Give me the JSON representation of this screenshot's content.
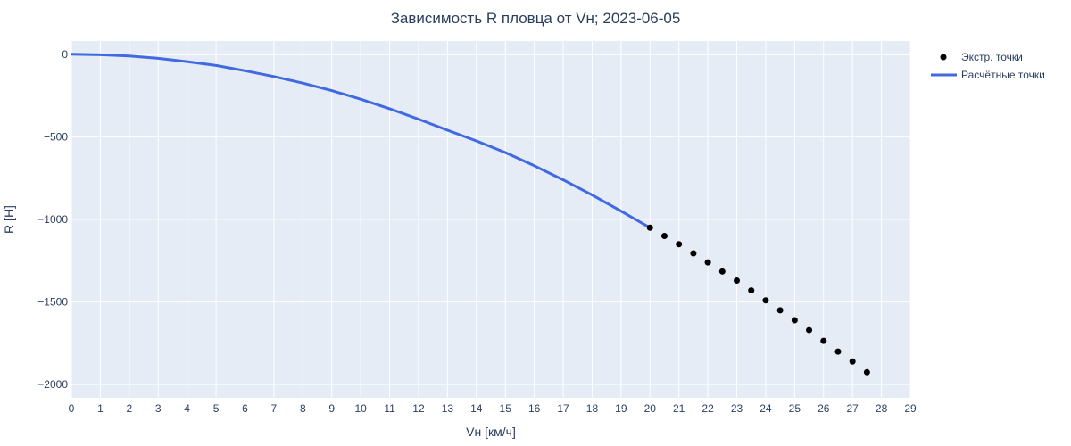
{
  "chart_data": {
    "type": "line+scatter",
    "title": "Зависимость R пловца от Vн; 2023-06-05",
    "xlabel": "Vн [км/ч]",
    "ylabel": "R [Н]",
    "xlim": [
      0,
      29
    ],
    "ylim": [
      -2080,
      80
    ],
    "x_ticks": [
      0,
      1,
      2,
      3,
      4,
      5,
      6,
      7,
      8,
      9,
      10,
      11,
      12,
      13,
      14,
      15,
      16,
      17,
      18,
      19,
      20,
      21,
      22,
      23,
      24,
      25,
      26,
      27,
      28,
      29
    ],
    "y_ticks": [
      0,
      -500,
      -1000,
      -1500,
      -2000
    ],
    "y_tick_labels": [
      "0",
      "−500",
      "−1000",
      "−1500",
      "−2000"
    ],
    "grid": true,
    "legend_position": "top-right",
    "colors": {
      "plot_bg": "#e5ecf6",
      "grid": "#ffffff",
      "line": "#4169e1",
      "marker": "#000000"
    },
    "series": [
      {
        "name": "Экстр. точки",
        "mode": "markers",
        "x": [
          20,
          20.5,
          21,
          21.5,
          22,
          22.5,
          23,
          23.5,
          24,
          24.5,
          25,
          25.5,
          26,
          26.5,
          27,
          27.5
        ],
        "y": [
          -1050,
          -1100,
          -1150,
          -1205,
          -1260,
          -1315,
          -1370,
          -1430,
          -1490,
          -1550,
          -1610,
          -1670,
          -1735,
          -1800,
          -1860,
          -1925
        ]
      },
      {
        "name": "Расчётные точки",
        "mode": "lines",
        "x": [
          0,
          1,
          2,
          3,
          4,
          5,
          6,
          7,
          8,
          9,
          10,
          11,
          12,
          13,
          14,
          15,
          16,
          17,
          18,
          19,
          20
        ],
        "y": [
          0,
          -3,
          -10,
          -25,
          -45,
          -68,
          -100,
          -135,
          -175,
          -220,
          -272,
          -330,
          -393,
          -460,
          -525,
          -595,
          -675,
          -760,
          -852,
          -950,
          -1050
        ]
      }
    ]
  }
}
